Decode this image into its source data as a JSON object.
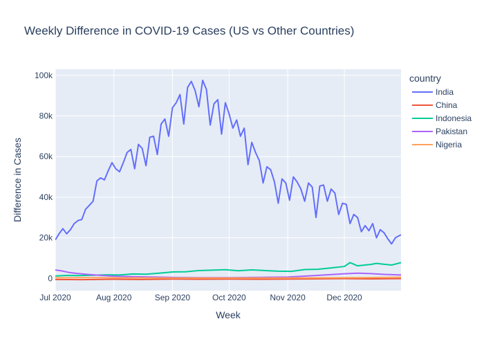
{
  "chart_data": {
    "type": "line",
    "title": "Weekly Difference in COVID-19 Cases (US vs Other Countries)",
    "xlabel": "Week",
    "ylabel": "Difference in Cases",
    "legend_title": "country",
    "legend_position": "right",
    "grid": true,
    "x_range": [
      "2020-07-01",
      "2020-12-31"
    ],
    "y_range": [
      -6000,
      103000
    ],
    "x_ticks": [
      {
        "date": "2020-07-01",
        "label": "Jul 2020"
      },
      {
        "date": "2020-08-01",
        "label": "Aug 2020"
      },
      {
        "date": "2020-09-01",
        "label": "Sep 2020"
      },
      {
        "date": "2020-10-01",
        "label": "Oct 2020"
      },
      {
        "date": "2020-11-01",
        "label": "Nov 2020"
      },
      {
        "date": "2020-12-01",
        "label": "Dec 2020"
      }
    ],
    "y_ticks": [
      {
        "value": 0,
        "label": "0"
      },
      {
        "value": 20000,
        "label": "20k"
      },
      {
        "value": 40000,
        "label": "40k"
      },
      {
        "value": 60000,
        "label": "60k"
      },
      {
        "value": 80000,
        "label": "80k"
      },
      {
        "value": 100000,
        "label": "100k"
      }
    ],
    "series": [
      {
        "name": "India",
        "color": "#636efa",
        "points": [
          [
            "2020-07-01",
            19000
          ],
          [
            "2020-07-03",
            22000
          ],
          [
            "2020-07-05",
            24500
          ],
          [
            "2020-07-07",
            22000
          ],
          [
            "2020-07-09",
            24000
          ],
          [
            "2020-07-11",
            27000
          ],
          [
            "2020-07-13",
            28500
          ],
          [
            "2020-07-15",
            29000
          ],
          [
            "2020-07-17",
            34000
          ],
          [
            "2020-07-19",
            36000
          ],
          [
            "2020-07-21",
            38000
          ],
          [
            "2020-07-23",
            48000
          ],
          [
            "2020-07-25",
            49500
          ],
          [
            "2020-07-27",
            48500
          ],
          [
            "2020-07-29",
            53000
          ],
          [
            "2020-07-31",
            57000
          ],
          [
            "2020-08-02",
            54000
          ],
          [
            "2020-08-04",
            52500
          ],
          [
            "2020-08-06",
            57000
          ],
          [
            "2020-08-08",
            62000
          ],
          [
            "2020-08-10",
            63500
          ],
          [
            "2020-08-12",
            54000
          ],
          [
            "2020-08-14",
            66000
          ],
          [
            "2020-08-16",
            64000
          ],
          [
            "2020-08-18",
            55500
          ],
          [
            "2020-08-20",
            69500
          ],
          [
            "2020-08-22",
            70000
          ],
          [
            "2020-08-24",
            61000
          ],
          [
            "2020-08-26",
            76000
          ],
          [
            "2020-08-28",
            78500
          ],
          [
            "2020-08-30",
            70000
          ],
          [
            "2020-09-01",
            84000
          ],
          [
            "2020-09-03",
            86500
          ],
          [
            "2020-09-05",
            90500
          ],
          [
            "2020-09-07",
            76000
          ],
          [
            "2020-09-09",
            94000
          ],
          [
            "2020-09-11",
            97000
          ],
          [
            "2020-09-13",
            92500
          ],
          [
            "2020-09-15",
            84500
          ],
          [
            "2020-09-17",
            97500
          ],
          [
            "2020-09-19",
            93000
          ],
          [
            "2020-09-21",
            75500
          ],
          [
            "2020-09-23",
            86000
          ],
          [
            "2020-09-25",
            88000
          ],
          [
            "2020-09-27",
            71000
          ],
          [
            "2020-09-29",
            86500
          ],
          [
            "2020-10-01",
            81000
          ],
          [
            "2020-10-03",
            74000
          ],
          [
            "2020-10-05",
            78000
          ],
          [
            "2020-10-07",
            70000
          ],
          [
            "2020-10-09",
            74000
          ],
          [
            "2020-10-11",
            56000
          ],
          [
            "2020-10-13",
            67000
          ],
          [
            "2020-10-15",
            62000
          ],
          [
            "2020-10-17",
            58000
          ],
          [
            "2020-10-19",
            47000
          ],
          [
            "2020-10-21",
            55000
          ],
          [
            "2020-10-23",
            53500
          ],
          [
            "2020-10-25",
            47500
          ],
          [
            "2020-10-27",
            37000
          ],
          [
            "2020-10-29",
            49000
          ],
          [
            "2020-10-31",
            47000
          ],
          [
            "2020-11-02",
            38500
          ],
          [
            "2020-11-04",
            50000
          ],
          [
            "2020-11-06",
            47500
          ],
          [
            "2020-11-08",
            44000
          ],
          [
            "2020-11-10",
            38000
          ],
          [
            "2020-11-12",
            47000
          ],
          [
            "2020-11-14",
            45000
          ],
          [
            "2020-11-16",
            30000
          ],
          [
            "2020-11-18",
            45500
          ],
          [
            "2020-11-20",
            46000
          ],
          [
            "2020-11-22",
            38000
          ],
          [
            "2020-11-24",
            44000
          ],
          [
            "2020-11-26",
            42000
          ],
          [
            "2020-11-28",
            31500
          ],
          [
            "2020-11-30",
            37000
          ],
          [
            "2020-12-02",
            36500
          ],
          [
            "2020-12-04",
            27000
          ],
          [
            "2020-12-06",
            31500
          ],
          [
            "2020-12-08",
            30000
          ],
          [
            "2020-12-10",
            23000
          ],
          [
            "2020-12-12",
            26000
          ],
          [
            "2020-12-14",
            23500
          ],
          [
            "2020-12-16",
            27000
          ],
          [
            "2020-12-18",
            20000
          ],
          [
            "2020-12-20",
            24000
          ],
          [
            "2020-12-22",
            22500
          ],
          [
            "2020-12-24",
            19500
          ],
          [
            "2020-12-26",
            17000
          ],
          [
            "2020-12-28",
            20000
          ],
          [
            "2020-12-31",
            21500
          ]
        ]
      },
      {
        "name": "China",
        "color": "#ef553b",
        "points": [
          [
            "2020-07-01",
            -500
          ],
          [
            "2020-07-15",
            -600
          ],
          [
            "2020-08-01",
            -400
          ],
          [
            "2020-08-15",
            -500
          ],
          [
            "2020-09-01",
            -300
          ],
          [
            "2020-09-15",
            -400
          ],
          [
            "2020-10-01",
            -300
          ],
          [
            "2020-10-15",
            -400
          ],
          [
            "2020-11-01",
            -300
          ],
          [
            "2020-11-15",
            -200
          ],
          [
            "2020-12-01",
            -100
          ],
          [
            "2020-12-15",
            -200
          ],
          [
            "2020-12-31",
            -100
          ]
        ]
      },
      {
        "name": "Indonesia",
        "color": "#00cc96",
        "points": [
          [
            "2020-07-01",
            1200
          ],
          [
            "2020-07-07",
            1500
          ],
          [
            "2020-07-14",
            1400
          ],
          [
            "2020-07-21",
            1600
          ],
          [
            "2020-07-28",
            1800
          ],
          [
            "2020-08-04",
            1700
          ],
          [
            "2020-08-11",
            2200
          ],
          [
            "2020-08-18",
            2100
          ],
          [
            "2020-08-25",
            2600
          ],
          [
            "2020-09-01",
            3200
          ],
          [
            "2020-09-08",
            3300
          ],
          [
            "2020-09-15",
            3900
          ],
          [
            "2020-09-22",
            4100
          ],
          [
            "2020-09-29",
            4300
          ],
          [
            "2020-10-06",
            3800
          ],
          [
            "2020-10-13",
            4200
          ],
          [
            "2020-10-20",
            3900
          ],
          [
            "2020-10-27",
            3600
          ],
          [
            "2020-11-03",
            3500
          ],
          [
            "2020-11-10",
            4400
          ],
          [
            "2020-11-17",
            4500
          ],
          [
            "2020-11-24",
            5200
          ],
          [
            "2020-12-01",
            5900
          ],
          [
            "2020-12-04",
            7800
          ],
          [
            "2020-12-08",
            6200
          ],
          [
            "2020-12-15",
            6900
          ],
          [
            "2020-12-18",
            7400
          ],
          [
            "2020-12-22",
            7000
          ],
          [
            "2020-12-26",
            6600
          ],
          [
            "2020-12-31",
            7800
          ]
        ]
      },
      {
        "name": "Pakistan",
        "color": "#ab63fa",
        "points": [
          [
            "2020-07-01",
            4200
          ],
          [
            "2020-07-04",
            3800
          ],
          [
            "2020-07-08",
            3000
          ],
          [
            "2020-07-12",
            2500
          ],
          [
            "2020-07-18",
            2000
          ],
          [
            "2020-07-25",
            1500
          ],
          [
            "2020-08-01",
            1100
          ],
          [
            "2020-08-15",
            800
          ],
          [
            "2020-09-01",
            500
          ],
          [
            "2020-09-15",
            400
          ],
          [
            "2020-10-01",
            400
          ],
          [
            "2020-10-15",
            500
          ],
          [
            "2020-11-01",
            700
          ],
          [
            "2020-11-15",
            1400
          ],
          [
            "2020-12-01",
            2300
          ],
          [
            "2020-12-08",
            2600
          ],
          [
            "2020-12-15",
            2400
          ],
          [
            "2020-12-22",
            2000
          ],
          [
            "2020-12-31",
            1700
          ]
        ]
      },
      {
        "name": "Nigeria",
        "color": "#ffa15a",
        "points": [
          [
            "2020-07-01",
            300
          ],
          [
            "2020-07-20",
            400
          ],
          [
            "2020-08-10",
            300
          ],
          [
            "2020-09-01",
            200
          ],
          [
            "2020-09-20",
            200
          ],
          [
            "2020-10-10",
            200
          ],
          [
            "2020-11-01",
            200
          ],
          [
            "2020-11-20",
            300
          ],
          [
            "2020-12-10",
            400
          ],
          [
            "2020-12-31",
            600
          ]
        ]
      }
    ]
  }
}
